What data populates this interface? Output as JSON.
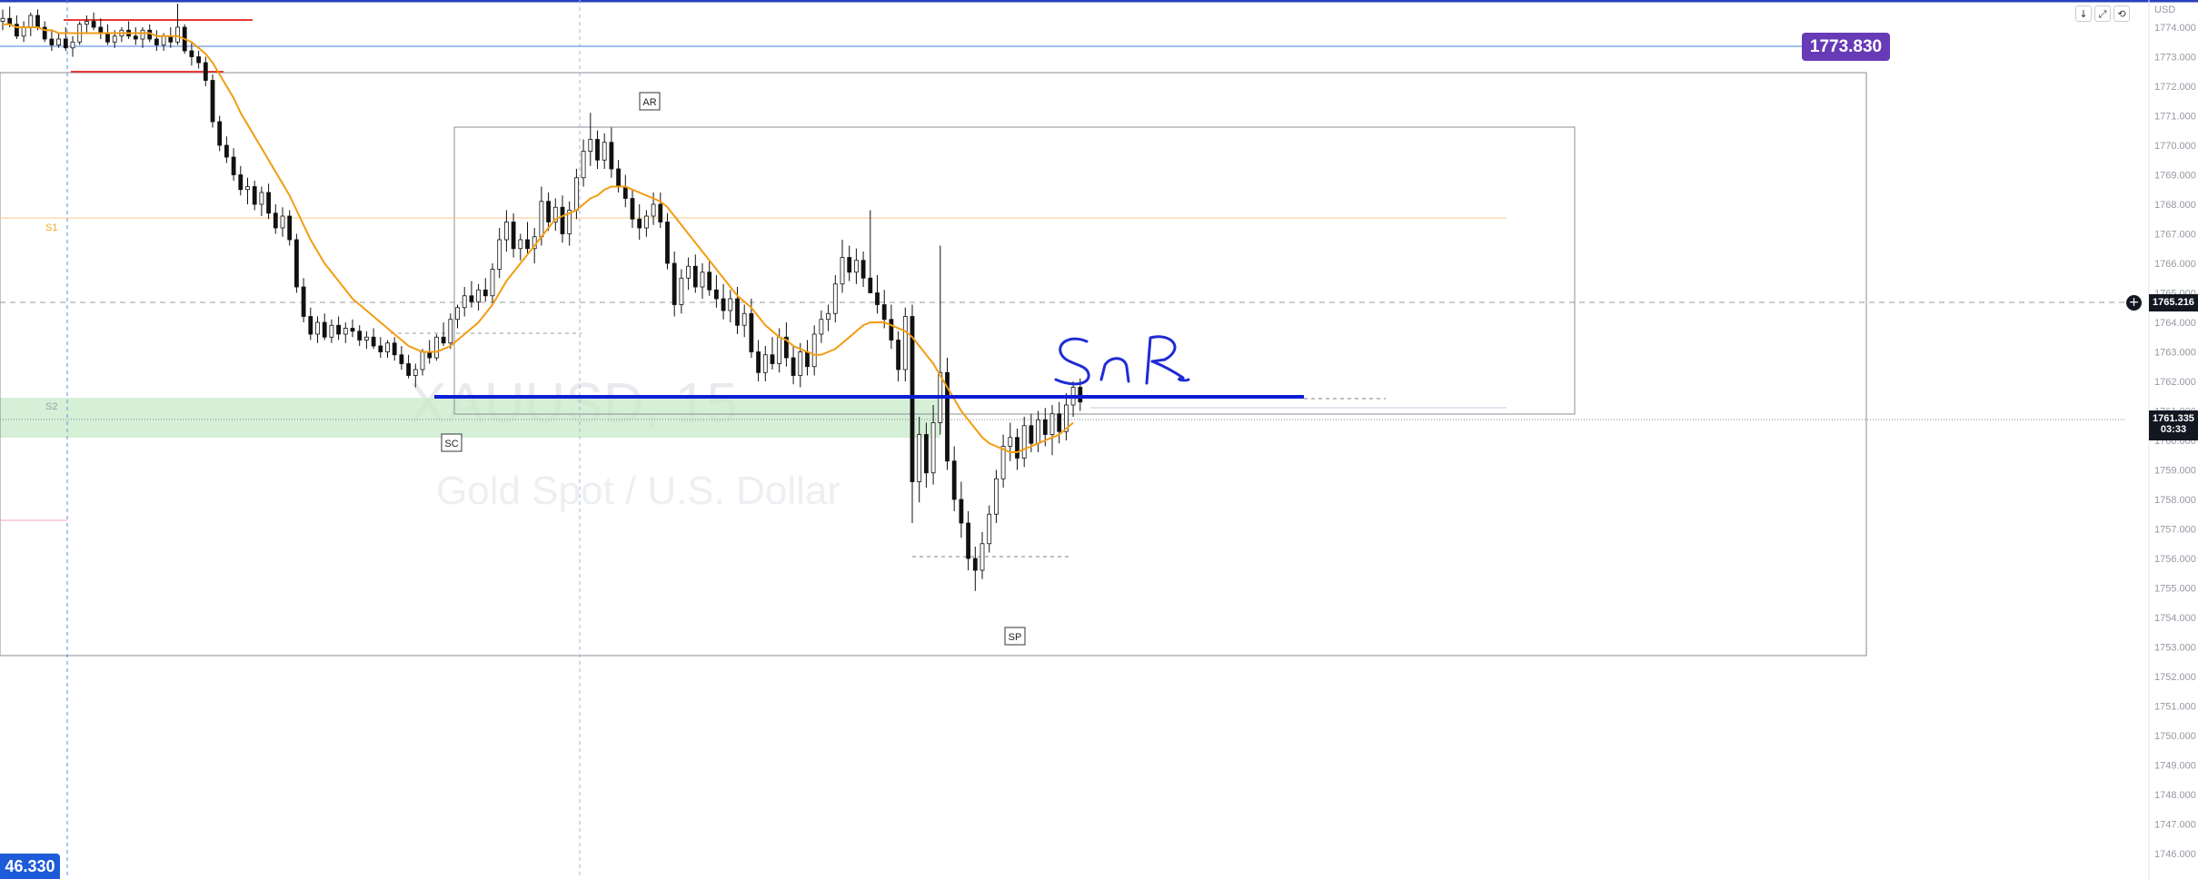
{
  "chart_data": {
    "type": "candlestick",
    "symbol_watermark": "XAUUSD, 15",
    "subtitle_watermark": "Gold Spot / U.S. Dollar",
    "currency_label": "USD",
    "y_range": [
      1746.0,
      1775.0
    ],
    "y_ticks": [
      "1746.000",
      "1747.000",
      "1748.000",
      "1749.000",
      "1750.000",
      "1751.000",
      "1752.000",
      "1753.000",
      "1754.000",
      "1755.000",
      "1756.000",
      "1757.000",
      "1758.000",
      "1759.000",
      "1760.000",
      "1761.000",
      "1762.000",
      "1763.000",
      "1764.000",
      "1765.000",
      "1766.000",
      "1767.000",
      "1768.000",
      "1769.000",
      "1770.000",
      "1771.000",
      "1772.000",
      "1773.000",
      "1774.000"
    ],
    "current_price": "1761.335",
    "countdown": "03:33",
    "crosshair_price": "1765.216",
    "horizontal_line_price": "1773.830",
    "left_edge_label": "46.330",
    "pivot_labels": [
      "S1",
      "S2"
    ],
    "annotations": [
      "AR",
      "SC",
      "SP"
    ],
    "handwritten_note": "SnR",
    "moving_average_color": "#f39c12",
    "snr_line_color": "#0b1dd6",
    "candles": [
      [
        1774.2,
        1774.6,
        1773.9,
        1774.3
      ],
      [
        1774.3,
        1774.7,
        1774.0,
        1774.1
      ],
      [
        1774.1,
        1774.4,
        1773.6,
        1773.7
      ],
      [
        1773.7,
        1774.2,
        1773.5,
        1774.0
      ],
      [
        1774.0,
        1774.5,
        1773.7,
        1774.4
      ],
      [
        1774.4,
        1774.6,
        1773.9,
        1774.0
      ],
      [
        1774.0,
        1774.2,
        1773.5,
        1773.6
      ],
      [
        1773.6,
        1773.9,
        1773.2,
        1773.4
      ],
      [
        1773.4,
        1773.8,
        1773.3,
        1773.6
      ],
      [
        1773.6,
        1774.0,
        1773.2,
        1773.3
      ],
      [
        1773.3,
        1773.7,
        1773.0,
        1773.5
      ],
      [
        1773.5,
        1774.2,
        1773.4,
        1774.1
      ],
      [
        1774.1,
        1774.4,
        1773.8,
        1774.2
      ],
      [
        1774.2,
        1774.5,
        1773.9,
        1774.0
      ],
      [
        1774.0,
        1774.3,
        1773.6,
        1773.8
      ],
      [
        1773.8,
        1774.1,
        1773.4,
        1773.5
      ],
      [
        1773.5,
        1773.9,
        1773.3,
        1773.7
      ],
      [
        1773.7,
        1774.0,
        1773.5,
        1773.9
      ],
      [
        1773.9,
        1774.2,
        1773.6,
        1773.7
      ],
      [
        1773.7,
        1774.0,
        1773.4,
        1773.6
      ],
      [
        1773.6,
        1774.0,
        1773.3,
        1773.9
      ],
      [
        1773.9,
        1774.1,
        1773.5,
        1773.6
      ],
      [
        1773.6,
        1773.9,
        1773.2,
        1773.4
      ],
      [
        1773.4,
        1773.8,
        1773.2,
        1773.7
      ],
      [
        1773.7,
        1774.0,
        1773.3,
        1773.5
      ],
      [
        1773.5,
        1774.8,
        1773.4,
        1774.0
      ],
      [
        1774.0,
        1774.1,
        1773.1,
        1773.2
      ],
      [
        1773.2,
        1773.5,
        1772.7,
        1773.0
      ],
      [
        1773.0,
        1773.2,
        1772.6,
        1772.8
      ],
      [
        1772.8,
        1773.0,
        1772.0,
        1772.2
      ],
      [
        1772.2,
        1772.4,
        1770.6,
        1770.8
      ],
      [
        1770.8,
        1771.0,
        1769.8,
        1770.0
      ],
      [
        1770.0,
        1770.3,
        1769.4,
        1769.6
      ],
      [
        1769.6,
        1769.9,
        1768.8,
        1769.0
      ],
      [
        1769.0,
        1769.3,
        1768.3,
        1768.5
      ],
      [
        1768.5,
        1768.9,
        1768.0,
        1768.6
      ],
      [
        1768.6,
        1768.8,
        1767.8,
        1768.0
      ],
      [
        1768.0,
        1768.6,
        1767.6,
        1768.4
      ],
      [
        1768.4,
        1768.7,
        1767.5,
        1767.7
      ],
      [
        1767.7,
        1768.0,
        1767.0,
        1767.2
      ],
      [
        1767.2,
        1767.9,
        1766.9,
        1767.6
      ],
      [
        1767.6,
        1767.8,
        1766.6,
        1766.8
      ],
      [
        1766.8,
        1767.0,
        1765.0,
        1765.2
      ],
      [
        1765.2,
        1765.5,
        1764.0,
        1764.2
      ],
      [
        1764.2,
        1764.5,
        1763.4,
        1763.6
      ],
      [
        1763.6,
        1764.2,
        1763.3,
        1764.0
      ],
      [
        1764.0,
        1764.3,
        1763.4,
        1763.5
      ],
      [
        1763.5,
        1764.1,
        1763.3,
        1763.9
      ],
      [
        1763.9,
        1764.2,
        1763.4,
        1763.6
      ],
      [
        1763.6,
        1764.0,
        1763.3,
        1763.8
      ],
      [
        1763.8,
        1764.1,
        1763.5,
        1763.7
      ],
      [
        1763.7,
        1763.9,
        1763.2,
        1763.4
      ],
      [
        1763.4,
        1763.7,
        1763.1,
        1763.5
      ],
      [
        1763.5,
        1763.8,
        1763.1,
        1763.2
      ],
      [
        1763.2,
        1763.5,
        1762.8,
        1763.0
      ],
      [
        1763.0,
        1763.4,
        1762.8,
        1763.3
      ],
      [
        1763.3,
        1763.5,
        1762.7,
        1762.9
      ],
      [
        1762.9,
        1763.2,
        1762.4,
        1762.6
      ],
      [
        1762.6,
        1762.9,
        1762.1,
        1762.2
      ],
      [
        1762.2,
        1762.6,
        1761.8,
        1762.4
      ],
      [
        1762.4,
        1763.1,
        1762.2,
        1763.0
      ],
      [
        1763.0,
        1763.4,
        1762.6,
        1762.8
      ],
      [
        1762.8,
        1763.6,
        1762.7,
        1763.5
      ],
      [
        1763.5,
        1764.0,
        1763.2,
        1763.3
      ],
      [
        1763.3,
        1764.3,
        1763.1,
        1764.1
      ],
      [
        1764.1,
        1764.6,
        1763.8,
        1764.5
      ],
      [
        1764.5,
        1765.2,
        1764.2,
        1764.9
      ],
      [
        1764.9,
        1765.4,
        1764.5,
        1764.7
      ],
      [
        1764.7,
        1765.3,
        1764.4,
        1765.1
      ],
      [
        1765.1,
        1765.5,
        1764.7,
        1764.9
      ],
      [
        1764.9,
        1766.0,
        1764.6,
        1765.8
      ],
      [
        1765.8,
        1767.2,
        1765.5,
        1766.8
      ],
      [
        1766.8,
        1767.8,
        1766.4,
        1767.4
      ],
      [
        1767.4,
        1767.7,
        1766.2,
        1766.5
      ],
      [
        1766.5,
        1767.0,
        1766.1,
        1766.8
      ],
      [
        1766.8,
        1767.4,
        1766.3,
        1766.5
      ],
      [
        1766.5,
        1767.2,
        1766.0,
        1766.9
      ],
      [
        1766.9,
        1768.6,
        1766.6,
        1768.1
      ],
      [
        1768.1,
        1768.4,
        1767.1,
        1767.4
      ],
      [
        1767.4,
        1768.2,
        1767.1,
        1767.9
      ],
      [
        1767.9,
        1768.3,
        1766.7,
        1767.0
      ],
      [
        1767.0,
        1768.1,
        1766.6,
        1767.8
      ],
      [
        1767.8,
        1769.2,
        1767.5,
        1768.9
      ],
      [
        1768.9,
        1770.2,
        1768.6,
        1769.8
      ],
      [
        1769.8,
        1771.1,
        1769.3,
        1770.2
      ],
      [
        1770.2,
        1770.5,
        1769.2,
        1769.5
      ],
      [
        1769.5,
        1770.4,
        1769.2,
        1770.1
      ],
      [
        1770.1,
        1770.6,
        1768.9,
        1769.2
      ],
      [
        1769.2,
        1769.5,
        1768.4,
        1768.6
      ],
      [
        1768.6,
        1769.0,
        1767.9,
        1768.2
      ],
      [
        1768.2,
        1768.5,
        1767.2,
        1767.5
      ],
      [
        1767.5,
        1768.0,
        1766.8,
        1767.2
      ],
      [
        1767.2,
        1767.8,
        1766.9,
        1767.6
      ],
      [
        1767.6,
        1768.4,
        1767.3,
        1768.0
      ],
      [
        1768.0,
        1768.4,
        1767.2,
        1767.4
      ],
      [
        1767.4,
        1767.7,
        1765.8,
        1766.0
      ],
      [
        1766.0,
        1766.4,
        1764.2,
        1764.6
      ],
      [
        1764.6,
        1765.8,
        1764.3,
        1765.5
      ],
      [
        1765.5,
        1766.2,
        1765.1,
        1765.9
      ],
      [
        1765.9,
        1766.3,
        1765.0,
        1765.2
      ],
      [
        1765.2,
        1766.0,
        1764.8,
        1765.7
      ],
      [
        1765.7,
        1766.1,
        1764.9,
        1765.1
      ],
      [
        1765.1,
        1765.6,
        1764.5,
        1764.8
      ],
      [
        1764.8,
        1765.3,
        1764.1,
        1764.4
      ],
      [
        1764.4,
        1765.1,
        1764.0,
        1764.8
      ],
      [
        1764.8,
        1765.2,
        1763.6,
        1763.9
      ],
      [
        1763.9,
        1764.6,
        1763.5,
        1764.3
      ],
      [
        1764.3,
        1764.8,
        1762.8,
        1763.0
      ],
      [
        1763.0,
        1763.4,
        1762.0,
        1762.3
      ],
      [
        1762.3,
        1763.2,
        1762.0,
        1762.9
      ],
      [
        1762.9,
        1763.5,
        1762.4,
        1762.6
      ],
      [
        1762.6,
        1763.8,
        1762.3,
        1763.5
      ],
      [
        1763.5,
        1764.0,
        1762.5,
        1762.8
      ],
      [
        1762.8,
        1763.2,
        1761.9,
        1762.2
      ],
      [
        1762.2,
        1763.3,
        1761.8,
        1763.0
      ],
      [
        1763.0,
        1763.4,
        1762.2,
        1762.5
      ],
      [
        1762.5,
        1763.9,
        1762.2,
        1763.6
      ],
      [
        1763.6,
        1764.4,
        1763.3,
        1764.1
      ],
      [
        1764.1,
        1764.6,
        1763.7,
        1764.3
      ],
      [
        1764.3,
        1765.6,
        1764.0,
        1765.3
      ],
      [
        1765.3,
        1766.8,
        1765.0,
        1766.2
      ],
      [
        1766.2,
        1766.6,
        1765.4,
        1765.7
      ],
      [
        1765.7,
        1766.5,
        1765.3,
        1766.1
      ],
      [
        1766.1,
        1766.4,
        1765.2,
        1765.5
      ],
      [
        1765.5,
        1767.8,
        1765.2,
        1765.0
      ],
      [
        1765.0,
        1765.6,
        1764.3,
        1764.6
      ],
      [
        1764.6,
        1765.1,
        1763.8,
        1764.1
      ],
      [
        1764.1,
        1764.6,
        1763.1,
        1763.4
      ],
      [
        1763.4,
        1763.7,
        1762.0,
        1762.4
      ],
      [
        1762.4,
        1764.5,
        1762.0,
        1764.2
      ],
      [
        1764.2,
        1764.6,
        1757.2,
        1758.6
      ],
      [
        1758.6,
        1760.8,
        1757.9,
        1760.2
      ],
      [
        1760.2,
        1760.6,
        1758.4,
        1758.9
      ],
      [
        1758.9,
        1761.2,
        1758.5,
        1760.6
      ],
      [
        1760.6,
        1766.6,
        1760.2,
        1762.3
      ],
      [
        1762.3,
        1762.8,
        1759.0,
        1759.3
      ],
      [
        1759.3,
        1759.8,
        1757.6,
        1758.0
      ],
      [
        1758.0,
        1758.6,
        1756.7,
        1757.2
      ],
      [
        1757.2,
        1757.6,
        1755.6,
        1756.0
      ],
      [
        1756.0,
        1756.4,
        1754.9,
        1755.6
      ],
      [
        1755.6,
        1756.9,
        1755.3,
        1756.5
      ],
      [
        1756.5,
        1757.8,
        1756.2,
        1757.5
      ],
      [
        1757.5,
        1759.0,
        1757.2,
        1758.7
      ],
      [
        1758.7,
        1760.2,
        1758.4,
        1759.8
      ],
      [
        1759.8,
        1760.6,
        1759.3,
        1760.1
      ],
      [
        1760.1,
        1760.4,
        1759.0,
        1759.4
      ],
      [
        1759.4,
        1760.8,
        1759.1,
        1760.5
      ],
      [
        1760.5,
        1760.9,
        1759.6,
        1759.9
      ],
      [
        1759.9,
        1761.0,
        1759.6,
        1760.7
      ],
      [
        1760.7,
        1761.1,
        1759.8,
        1760.2
      ],
      [
        1760.2,
        1761.2,
        1759.5,
        1760.9
      ],
      [
        1760.9,
        1761.3,
        1759.9,
        1760.3
      ],
      [
        1760.3,
        1761.6,
        1760.0,
        1761.2
      ],
      [
        1761.2,
        1762.0,
        1760.8,
        1761.8
      ],
      [
        1761.8,
        1762.1,
        1761.0,
        1761.3
      ]
    ],
    "moving_average": [
      1774.1,
      1774.1,
      1774.0,
      1774.0,
      1774.0,
      1774.0,
      1773.9,
      1773.9,
      1773.8,
      1773.8,
      1773.8,
      1773.8,
      1773.8,
      1773.8,
      1773.8,
      1773.8,
      1773.8,
      1773.8,
      1773.8,
      1773.8,
      1773.8,
      1773.8,
      1773.7,
      1773.7,
      1773.7,
      1773.7,
      1773.6,
      1773.5,
      1773.3,
      1773.1,
      1772.8,
      1772.4,
      1772.0,
      1771.6,
      1771.1,
      1770.7,
      1770.3,
      1769.9,
      1769.5,
      1769.1,
      1768.7,
      1768.3,
      1767.8,
      1767.3,
      1766.8,
      1766.4,
      1766.0,
      1765.7,
      1765.4,
      1765.1,
      1764.8,
      1764.6,
      1764.4,
      1764.2,
      1764.0,
      1763.8,
      1763.6,
      1763.4,
      1763.2,
      1763.1,
      1763.0,
      1763.0,
      1763.0,
      1763.1,
      1763.2,
      1763.4,
      1763.6,
      1763.8,
      1764.0,
      1764.3,
      1764.6,
      1765.0,
      1765.4,
      1765.7,
      1766.0,
      1766.3,
      1766.6,
      1766.9,
      1767.2,
      1767.5,
      1767.6,
      1767.7,
      1767.8,
      1768.0,
      1768.2,
      1768.3,
      1768.5,
      1768.6,
      1768.6,
      1768.6,
      1768.5,
      1768.4,
      1768.3,
      1768.2,
      1768.1,
      1767.9,
      1767.6,
      1767.3,
      1767.0,
      1766.7,
      1766.4,
      1766.1,
      1765.8,
      1765.5,
      1765.2,
      1764.9,
      1764.7,
      1764.5,
      1764.2,
      1763.9,
      1763.7,
      1763.5,
      1763.4,
      1763.2,
      1763.1,
      1763.0,
      1762.9,
      1762.9,
      1763.0,
      1763.1,
      1763.3,
      1763.5,
      1763.7,
      1763.9,
      1764.0,
      1764.0,
      1764.0,
      1763.9,
      1763.8,
      1763.7,
      1763.5,
      1763.2,
      1762.9,
      1762.6,
      1762.2,
      1761.8,
      1761.4,
      1761.0,
      1760.7,
      1760.4,
      1760.1,
      1759.9,
      1759.8,
      1759.7,
      1759.6,
      1759.6,
      1759.7,
      1759.8,
      1759.9,
      1760.0,
      1760.1,
      1760.2,
      1760.4,
      1760.6
    ]
  }
}
